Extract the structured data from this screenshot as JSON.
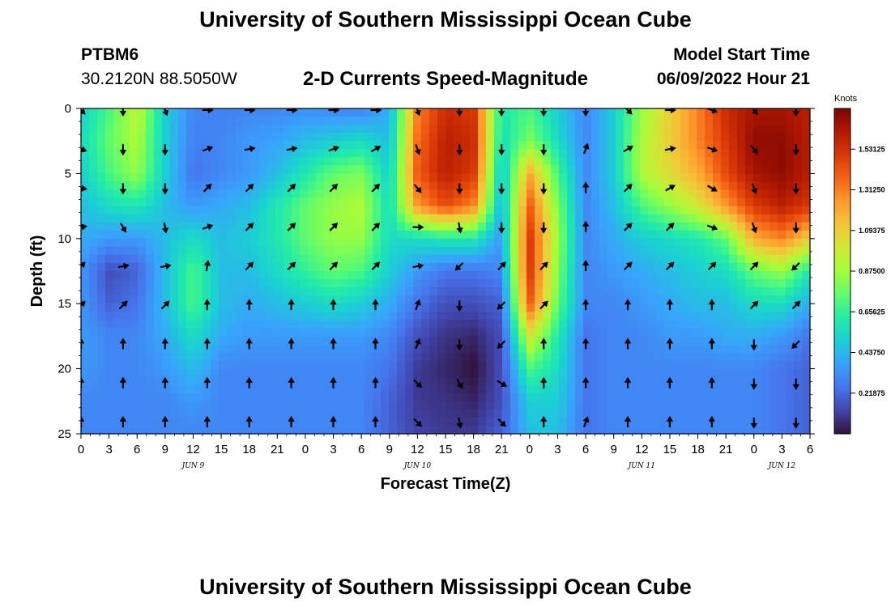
{
  "header": {
    "title": "University of Southern Mississippi Ocean Cube",
    "station": "PTBM6",
    "coords": "30.2120N  88.5050W",
    "subtitle": "2-D Currents Speed-Magnitude",
    "model_label": "Model Start Time",
    "model_time": "06/09/2022 Hour 21"
  },
  "footer": {
    "title": "University of Southern Mississippi Ocean Cube"
  },
  "chart_data": {
    "type": "heatmap",
    "title": "2-D Currents Speed-Magnitude",
    "xlabel": "Forecast Time(Z)",
    "ylabel": "Depth (ft)",
    "x_ticks": [
      "0",
      "3",
      "6",
      "9",
      "12",
      "15",
      "18",
      "21",
      "0",
      "3",
      "6",
      "9",
      "12",
      "15",
      "18",
      "21",
      "0",
      "3",
      "6",
      "9",
      "12",
      "15",
      "18",
      "21",
      "0",
      "3",
      "6"
    ],
    "x_range_hours": [
      0,
      78
    ],
    "date_labels": [
      {
        "label": "JUN 9",
        "hour": 12
      },
      {
        "label": "JUN 10",
        "hour": 36
      },
      {
        "label": "JUN 11",
        "hour": 60
      },
      {
        "label": "JUN 12",
        "hour": 75
      }
    ],
    "y_ticks": [
      "0",
      "5",
      "10",
      "15",
      "20",
      "25"
    ],
    "y_range_ft": [
      0,
      25
    ],
    "colorbar": {
      "unit": "Knots",
      "range": [
        0,
        1.75
      ],
      "labels": [
        "1.53125",
        "1.31250",
        "1.09375",
        "0.87500",
        "0.65625",
        "0.43750",
        "0.21875"
      ],
      "label_values": [
        1.53125,
        1.3125,
        1.09375,
        0.875,
        0.65625,
        0.4375,
        0.21875
      ],
      "colors": [
        "#30123b",
        "#4145ab",
        "#4675ed",
        "#39a2fc",
        "#1bcfd4",
        "#24eca6",
        "#61fc6c",
        "#a4fc3b",
        "#d1e834",
        "#f3c63a",
        "#fe9b2d",
        "#f36315",
        "#d93806",
        "#b11901",
        "#7a0402"
      ]
    },
    "speed_hours": [
      0,
      3,
      6,
      9,
      12,
      15,
      18,
      21,
      24,
      27,
      30,
      33,
      36,
      39,
      42,
      45,
      48,
      51,
      54,
      57,
      60,
      63,
      66,
      69,
      72,
      75,
      78
    ],
    "speed_depths_ft": [
      0,
      2.5,
      5,
      7.5,
      10,
      12.5,
      15,
      17.5,
      20,
      22.5,
      25
    ],
    "speed_knots": [
      [
        0.5,
        0.7,
        0.95,
        0.5,
        0.3,
        0.28,
        0.3,
        0.3,
        0.32,
        0.3,
        0.28,
        0.4,
        1.3,
        1.55,
        1.5,
        0.6,
        0.7,
        0.5,
        0.3,
        0.5,
        0.85,
        1.1,
        1.3,
        1.55,
        1.65,
        1.65,
        1.6
      ],
      [
        0.55,
        0.75,
        0.9,
        0.5,
        0.28,
        0.3,
        0.35,
        0.38,
        0.45,
        0.5,
        0.55,
        0.45,
        1.35,
        1.6,
        1.55,
        0.55,
        0.8,
        0.55,
        0.3,
        0.5,
        0.9,
        1.1,
        1.3,
        1.5,
        1.7,
        1.7,
        1.6
      ],
      [
        0.5,
        0.7,
        0.85,
        0.5,
        0.25,
        0.3,
        0.35,
        0.45,
        0.6,
        0.75,
        0.8,
        0.5,
        1.4,
        1.6,
        1.5,
        0.45,
        1.2,
        0.7,
        0.3,
        0.5,
        0.9,
        1.05,
        1.2,
        1.45,
        1.65,
        1.7,
        1.6
      ],
      [
        0.45,
        0.55,
        0.6,
        0.45,
        0.35,
        0.4,
        0.45,
        0.6,
        0.75,
        0.85,
        0.9,
        0.55,
        1.25,
        1.45,
        1.3,
        0.4,
        1.4,
        0.8,
        0.3,
        0.45,
        0.7,
        0.85,
        1.0,
        1.25,
        1.5,
        1.6,
        1.5
      ],
      [
        0.4,
        0.35,
        0.35,
        0.45,
        0.55,
        0.45,
        0.5,
        0.6,
        0.75,
        0.85,
        0.85,
        0.55,
        0.55,
        0.6,
        0.6,
        0.35,
        1.5,
        0.85,
        0.3,
        0.4,
        0.5,
        0.55,
        0.6,
        0.75,
        1.2,
        1.3,
        1.1
      ],
      [
        0.35,
        0.15,
        0.2,
        0.45,
        0.7,
        0.45,
        0.45,
        0.55,
        0.65,
        0.75,
        0.7,
        0.5,
        0.35,
        0.25,
        0.25,
        0.3,
        1.5,
        0.8,
        0.3,
        0.35,
        0.4,
        0.45,
        0.5,
        0.55,
        0.75,
        0.85,
        0.6
      ],
      [
        0.35,
        0.2,
        0.25,
        0.45,
        0.7,
        0.45,
        0.4,
        0.45,
        0.5,
        0.55,
        0.5,
        0.4,
        0.25,
        0.15,
        0.15,
        0.2,
        1.4,
        0.75,
        0.3,
        0.3,
        0.35,
        0.4,
        0.45,
        0.45,
        0.55,
        0.55,
        0.4
      ],
      [
        0.35,
        0.3,
        0.3,
        0.4,
        0.55,
        0.4,
        0.35,
        0.35,
        0.35,
        0.35,
        0.35,
        0.3,
        0.15,
        0.08,
        0.05,
        0.15,
        1.0,
        0.6,
        0.25,
        0.3,
        0.3,
        0.35,
        0.35,
        0.4,
        0.4,
        0.35,
        0.25
      ],
      [
        0.35,
        0.3,
        0.3,
        0.35,
        0.45,
        0.3,
        0.3,
        0.3,
        0.3,
        0.3,
        0.3,
        0.25,
        0.1,
        0.05,
        0.0,
        0.15,
        0.7,
        0.55,
        0.25,
        0.3,
        0.3,
        0.3,
        0.3,
        0.3,
        0.3,
        0.25,
        0.2
      ],
      [
        0.3,
        0.3,
        0.3,
        0.3,
        0.35,
        0.3,
        0.3,
        0.3,
        0.3,
        0.3,
        0.3,
        0.2,
        0.1,
        0.08,
        0.05,
        0.15,
        0.5,
        0.5,
        0.25,
        0.3,
        0.3,
        0.3,
        0.3,
        0.3,
        0.3,
        0.25,
        0.2
      ],
      [
        0.3,
        0.3,
        0.3,
        0.3,
        0.3,
        0.3,
        0.3,
        0.3,
        0.3,
        0.3,
        0.3,
        0.2,
        0.12,
        0.1,
        0.1,
        0.2,
        0.45,
        0.45,
        0.25,
        0.3,
        0.3,
        0.3,
        0.3,
        0.3,
        0.3,
        0.25,
        0.2
      ]
    ],
    "vector_hours": [
      0,
      4.5,
      9,
      13.5,
      18,
      22.5,
      27,
      31.5,
      36,
      40.5,
      45,
      49.5,
      54,
      58.5,
      63,
      67.5,
      72,
      76.5
    ],
    "vector_depths_ft": [
      0,
      3,
      6,
      9,
      12,
      15,
      18,
      21,
      24
    ],
    "vector_direction_deg": [
      [
        135,
        180,
        160,
        90,
        90,
        90,
        90,
        90,
        160,
        180,
        180,
        180,
        180,
        135,
        90,
        110,
        140,
        180
      ],
      [
        110,
        180,
        180,
        70,
        80,
        80,
        70,
        60,
        160,
        180,
        180,
        180,
        20,
        60,
        80,
        110,
        140,
        180
      ],
      [
        100,
        180,
        180,
        45,
        45,
        45,
        45,
        45,
        140,
        180,
        180,
        180,
        0,
        45,
        60,
        120,
        160,
        180
      ],
      [
        80,
        150,
        170,
        70,
        45,
        45,
        45,
        45,
        90,
        170,
        180,
        180,
        0,
        45,
        45,
        110,
        160,
        180
      ],
      [
        45,
        80,
        80,
        10,
        45,
        45,
        45,
        45,
        80,
        225,
        45,
        45,
        0,
        45,
        45,
        45,
        45,
        225
      ],
      [
        45,
        45,
        45,
        0,
        0,
        0,
        0,
        0,
        20,
        180,
        225,
        45,
        0,
        0,
        0,
        0,
        45,
        45
      ],
      [
        0,
        0,
        0,
        0,
        0,
        0,
        0,
        0,
        20,
        180,
        225,
        0,
        0,
        0,
        0,
        0,
        180,
        225
      ],
      [
        0,
        0,
        0,
        0,
        0,
        0,
        0,
        0,
        135,
        150,
        120,
        0,
        0,
        0,
        0,
        0,
        180,
        180
      ],
      [
        0,
        0,
        0,
        0,
        0,
        0,
        0,
        0,
        135,
        170,
        135,
        0,
        20,
        0,
        0,
        0,
        180,
        180
      ]
    ]
  }
}
